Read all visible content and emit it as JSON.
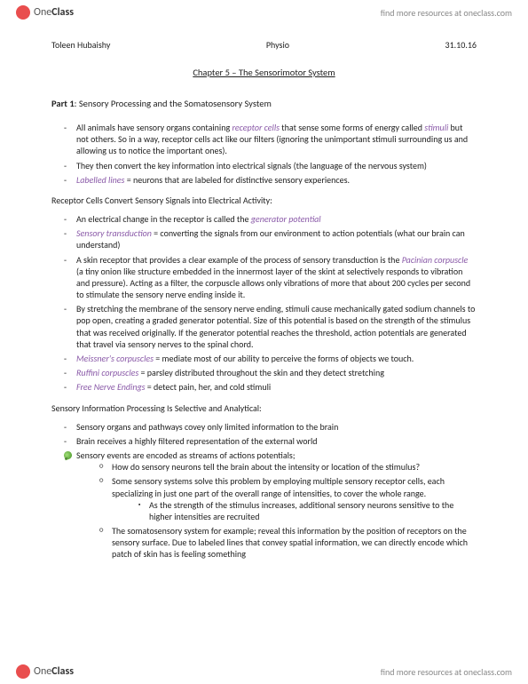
{
  "brand": {
    "name_light": "One",
    "name_bold": "Class",
    "tagline": "find more resources at oneclass.com"
  },
  "header": {
    "author": "Toleen Hubaishy",
    "course": "Physio",
    "date": "31.10.16"
  },
  "chapter": "Chapter 5 – The Sensorimotor System",
  "part": {
    "label": "Part 1",
    "title": ": Sensory Processing and the Somatosensory System"
  },
  "intro": [
    {
      "pre": "All animals have sensory organs containing ",
      "em": "receptor cells",
      "post": " that sense some forms of energy called ",
      "em2": "stimuli",
      "post2": " but not others. So in a way, receptor cells act like our filters (ignoring the unimportant stimuli surrounding us and allowing us to notice the important ones)."
    },
    {
      "pre": "They then convert the key information into electrical signals (the language of the nervous system)"
    },
    {
      "em": "Labelled lines",
      "post": " = neurons that are labeled for distinctive sensory experiences."
    }
  ],
  "sectionA": "Receptor Cells Convert Sensory Signals into Electrical Activity:",
  "listA": [
    {
      "pre": "An electrical change in the receptor is called the ",
      "em": "generator potential"
    },
    {
      "em": "Sensory transduction",
      "post": " = converting the signals from our environment to action potentials (what our brain can understand)"
    },
    {
      "pre": "A skin receptor that provides a clear example of the process of sensory transduction is the ",
      "em": "Pacinian corpuscle",
      "post": " (a tiny onion like structure embedded in the innermost layer of the skint at selectively responds to vibration and pressure). Acting as a filter, the corpuscle allows only vibrations of more that about 200 cycles per second to stimulate the sensory nerve ending inside it."
    },
    {
      "pre": "By stretching the membrane of the sensory nerve ending, stimuli cause mechanically gated sodium channels to pop open, creating a graded generator potential. Size of this potential is based on the strength of the stimulus that was received originally. If the generator potential reaches the threshold, action potentials are generated that travel via sensory nerves to the spinal chord."
    },
    {
      "em": "Meissner's corpuscles",
      "post": " = mediate most of our ability to perceive the forms of objects we touch."
    },
    {
      "em": "Ruffini corpuscles",
      "post": " = parsley distributed throughout the skin and they detect stretching"
    },
    {
      "em": "Free Nerve Endings",
      "post": " = detect pain, her, and cold stimuli"
    }
  ],
  "sectionB": "Sensory Information Processing Is Selective and Analytical:",
  "listB": [
    {
      "pre": "Sensory organs and pathways covey only limited information to the brain"
    },
    {
      "pre": "Brain receives a highly filtered representation of the external world"
    },
    {
      "pre": "Sensory events are encoded as streams of actions potentials;",
      "leaf": true
    }
  ],
  "listB_sub1": [
    {
      "pre": "How do sensory neurons tell the brain about the intensity or location of the stimulus?"
    },
    {
      "pre": "Some sensory systems solve this problem by employing multiple sensory receptor cells, each specializing in just one part of the overall range of intensities, to cover the whole range."
    }
  ],
  "listB_sub2": [
    {
      "pre": "As the strength of the stimulus increases, additional sensory neurons sensitive to the higher intensities are recruited"
    }
  ],
  "listB_sub1b": [
    {
      "pre": "The somatosensory system for example; reveal this information by the position of receptors on the sensory surface. Due to labeled lines that convey spatial information, we can directly encode which patch of skin has is feeling something"
    }
  ],
  "colors": {
    "italic": "#8a5aa8",
    "logo": "#e94e4e",
    "text": "#222222"
  }
}
